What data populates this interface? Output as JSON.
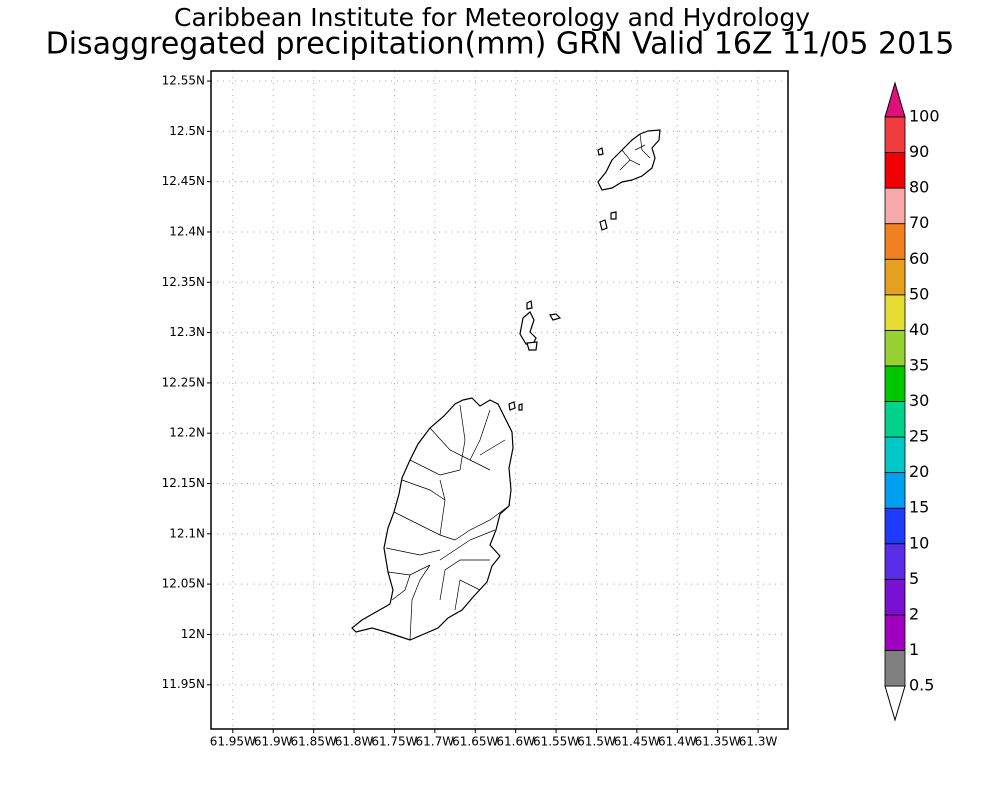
{
  "title": "Caribbean Institute for Meteorology and Hydrology",
  "subtitle": "Disaggregated precipitation(mm) GRN Valid 16Z 11/05 2015",
  "map": {
    "xlim": [
      -61.977,
      -61.263
    ],
    "ylim": [
      11.906,
      12.56
    ],
    "grid": true,
    "xticks": [
      {
        "value": -61.95,
        "label": "61.95W"
      },
      {
        "value": -61.9,
        "label": "61.9W"
      },
      {
        "value": -61.85,
        "label": "61.85W"
      },
      {
        "value": -61.8,
        "label": "61.8W"
      },
      {
        "value": -61.75,
        "label": "61.75W"
      },
      {
        "value": -61.7,
        "label": "61.7W"
      },
      {
        "value": -61.65,
        "label": "61.65W"
      },
      {
        "value": -61.6,
        "label": "61.6W"
      },
      {
        "value": -61.55,
        "label": "61.55W"
      },
      {
        "value": -61.5,
        "label": "61.5W"
      },
      {
        "value": -61.45,
        "label": "61.45W"
      },
      {
        "value": -61.4,
        "label": "61.4W"
      },
      {
        "value": -61.35,
        "label": "61.35W"
      },
      {
        "value": -61.3,
        "label": "61.3W"
      }
    ],
    "yticks": [
      {
        "value": 11.95,
        "label": "11.95N"
      },
      {
        "value": 12,
        "label": "12N"
      },
      {
        "value": 12.05,
        "label": "12.05N"
      },
      {
        "value": 12.1,
        "label": "12.1N"
      },
      {
        "value": 12.15,
        "label": "12.15N"
      },
      {
        "value": 12.2,
        "label": "12.2N"
      },
      {
        "value": 12.25,
        "label": "12.25N"
      },
      {
        "value": 12.3,
        "label": "12.3N"
      },
      {
        "value": 12.35,
        "label": "12.35N"
      },
      {
        "value": 12.4,
        "label": "12.4N"
      },
      {
        "value": 12.45,
        "label": "12.45N"
      },
      {
        "value": 12.5,
        "label": "12.5N"
      },
      {
        "value": 12.55,
        "label": "12.55N"
      }
    ]
  },
  "colorbar": {
    "levels": [
      0.5,
      1,
      2,
      5,
      10,
      15,
      20,
      25,
      30,
      35,
      40,
      50,
      60,
      70,
      80,
      90,
      100
    ],
    "colors": [
      "#808080",
      "#a000c0",
      "#7a10d0",
      "#5a2ee6",
      "#1e3cff",
      "#00a0f0",
      "#00c8c8",
      "#00d28c",
      "#00c800",
      "#96d232",
      "#e6dc32",
      "#e6a020",
      "#f08020",
      "#f7a8a8",
      "#f00000",
      "#f03c3c"
    ],
    "under_color": "#ffffff",
    "over_color": "#e0107a"
  }
}
